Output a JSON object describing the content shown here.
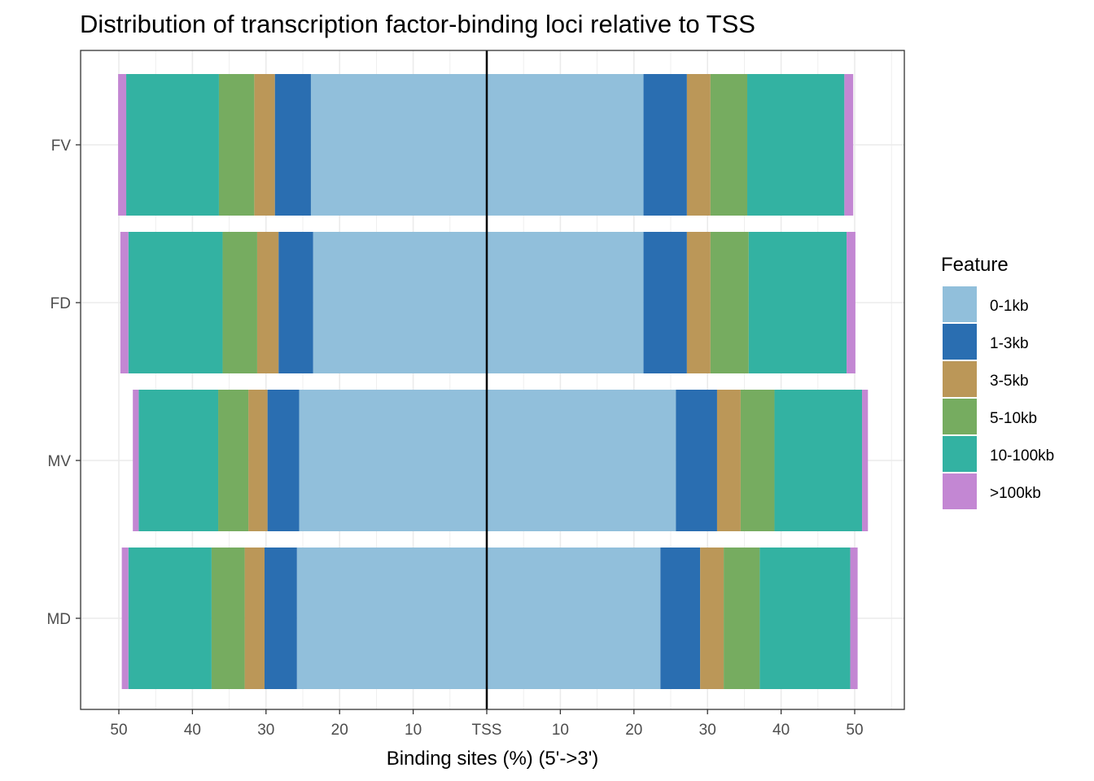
{
  "chart_data": {
    "type": "bar",
    "orientation": "horizontal",
    "stacked": true,
    "diverging": true,
    "title": "Distribution of transcription factor-binding loci relative to TSS",
    "xlabel": "Binding sites (%) (5'->3')",
    "ylabel": "",
    "xlim": [
      -50,
      50
    ],
    "x_ticks": [
      "50",
      "40",
      "30",
      "20",
      "10",
      "TSS",
      "10",
      "20",
      "30",
      "40",
      "50"
    ],
    "grid": true,
    "legend_title": "Feature",
    "legend_position": "right",
    "categories": [
      "FV",
      "FD",
      "MV",
      "MD"
    ],
    "series": [
      {
        "name": "0-1kb",
        "color": "#91BFDB",
        "upstream": [
          23.9,
          23.6,
          25.5,
          25.8
        ],
        "downstream": [
          21.3,
          21.3,
          25.7,
          23.6
        ]
      },
      {
        "name": "1-3kb",
        "color": "#2A6EB1",
        "upstream": [
          4.9,
          4.7,
          4.3,
          4.4
        ],
        "downstream": [
          5.9,
          5.9,
          5.6,
          5.4
        ]
      },
      {
        "name": "3-5kb",
        "color": "#BB9758",
        "upstream": [
          2.8,
          2.9,
          2.6,
          2.7
        ],
        "downstream": [
          3.2,
          3.2,
          3.2,
          3.2
        ]
      },
      {
        "name": "5-10kb",
        "color": "#76AC60",
        "upstream": [
          4.8,
          4.7,
          4.1,
          4.5
        ],
        "downstream": [
          5.0,
          5.2,
          4.6,
          4.9
        ]
      },
      {
        "name": "10-100kb",
        "color": "#33B2A2",
        "upstream": [
          12.6,
          12.8,
          10.8,
          11.3
        ],
        "downstream": [
          13.2,
          13.3,
          11.9,
          12.3
        ]
      },
      {
        "name": ">100kb",
        "color": "#C387D3",
        "upstream": [
          1.1,
          1.1,
          0.8,
          0.9
        ],
        "downstream": [
          1.2,
          1.2,
          0.8,
          1.0
        ]
      }
    ]
  }
}
